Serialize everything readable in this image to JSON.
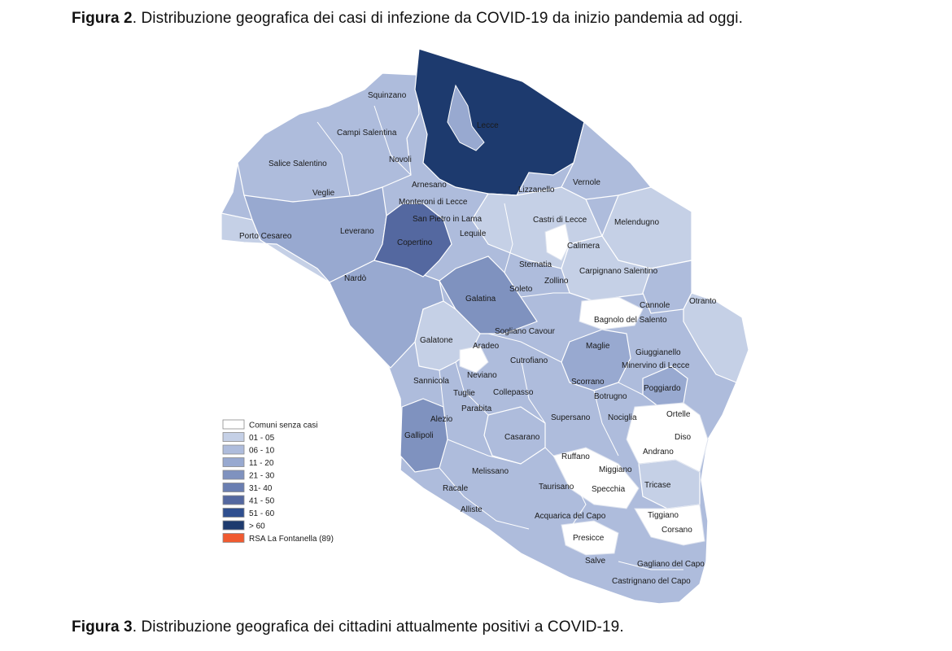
{
  "figure2": {
    "label": "Figura 2",
    "text": ". Distribuzione  geografica dei  casi di infezione  da  COVID-19 da inizio pandemia ad oggi."
  },
  "figure3": {
    "label": "Figura 3",
    "text": ". Distribuzione  geografica dei cittadini attualmente positivi a COVID-19."
  },
  "colors": {
    "none": "#ffffff",
    "c1": "#c5d0e6",
    "c2": "#aebcdc",
    "c3": "#98a9d0",
    "c4": "#7f92bf",
    "c5": "#6a7eb1",
    "c6": "#5468a0",
    "c7": "#2f4f8f",
    "c8": "#1d3a6e",
    "rsa": "#f05a30",
    "border": "#ffffff"
  },
  "legend": [
    {
      "label": "Comuni senza casi",
      "color": "none"
    },
    {
      "label": "01 - 05",
      "color": "c1"
    },
    {
      "label": "06 - 10",
      "color": "c2"
    },
    {
      "label": "11 - 20",
      "color": "c3"
    },
    {
      "label": "21 - 30",
      "color": "c4"
    },
    {
      "label": "31- 40",
      "color": "c5"
    },
    {
      "label": "41 - 50",
      "color": "c6"
    },
    {
      "label": "51 - 60",
      "color": "c7"
    },
    {
      "label": "> 60",
      "color": "c8"
    },
    {
      "label": "RSA La Fontanella (89)",
      "color": "rsa"
    }
  ],
  "towns": [
    {
      "name": "Squinzano",
      "color": "c3"
    },
    {
      "name": "Campi Salentina",
      "color": "c2"
    },
    {
      "name": "Lecce",
      "color": "c8"
    },
    {
      "name": "Novoli",
      "color": "c2"
    },
    {
      "name": "Salice Salentino",
      "color": "c2"
    },
    {
      "name": "Arnesano",
      "color": "c4"
    },
    {
      "name": "Veglie",
      "color": "c3"
    },
    {
      "name": "Monteroni di Lecce",
      "color": "c3"
    },
    {
      "name": "Lizzanello",
      "color": "c2"
    },
    {
      "name": "Vernole",
      "color": "c2"
    },
    {
      "name": "San Pietro in Lama",
      "color": "c6"
    },
    {
      "name": "Castri di Lecce",
      "color": "c1"
    },
    {
      "name": "Melendugno",
      "color": "c1"
    },
    {
      "name": "Leverano",
      "color": "c3"
    },
    {
      "name": "Porto Cesareo",
      "color": "c1"
    },
    {
      "name": "Lequile",
      "color": "c2"
    },
    {
      "name": "Copertino",
      "color": "c6"
    },
    {
      "name": "Calimera",
      "color": "c1"
    },
    {
      "name": "Sternatia",
      "color": "c1"
    },
    {
      "name": "Carpignano Salentino",
      "color": "c1"
    },
    {
      "name": "Nardò",
      "color": "c3"
    },
    {
      "name": "Zollino",
      "color": "c1"
    },
    {
      "name": "Soleto",
      "color": "c1"
    },
    {
      "name": "Galatina",
      "color": "c4"
    },
    {
      "name": "Cannole",
      "color": "c2"
    },
    {
      "name": "Otranto",
      "color": "c1"
    },
    {
      "name": "Bagnolo del Salento",
      "color": "c1"
    },
    {
      "name": "Sogliano Cavour",
      "color": "c2"
    },
    {
      "name": "Galatone",
      "color": "c1"
    },
    {
      "name": "Maglie",
      "color": "c3"
    },
    {
      "name": "Aradeo",
      "color": "c1"
    },
    {
      "name": "Giuggianello",
      "color": "c1"
    },
    {
      "name": "Cutrofiano",
      "color": "c1"
    },
    {
      "name": "Minervino di Lecce",
      "color": "c1"
    },
    {
      "name": "Neviano",
      "color": "c1"
    },
    {
      "name": "Sannicola",
      "color": "c1"
    },
    {
      "name": "Scorrano",
      "color": "c3"
    },
    {
      "name": "Tuglie",
      "color": "c1"
    },
    {
      "name": "Collepasso",
      "color": "c1"
    },
    {
      "name": "Botrugno",
      "color": "c1"
    },
    {
      "name": "Poggiardo",
      "color": "c3"
    },
    {
      "name": "Parabita",
      "color": "c1"
    },
    {
      "name": "Alezio",
      "color": "c1"
    },
    {
      "name": "Supersano",
      "color": "c1"
    },
    {
      "name": "Nociglia",
      "color": "c1"
    },
    {
      "name": "Ortelle",
      "color": "none"
    },
    {
      "name": "Gallipoli",
      "color": "c3"
    },
    {
      "name": "Casarano",
      "color": "c2"
    },
    {
      "name": "Diso",
      "color": "none"
    },
    {
      "name": "Andrano",
      "color": "none"
    },
    {
      "name": "Ruffano",
      "color": "c1"
    },
    {
      "name": "Miggiano",
      "color": "c1"
    },
    {
      "name": "Melissano",
      "color": "c1"
    },
    {
      "name": "Tricase",
      "color": "c1"
    },
    {
      "name": "Taurisano",
      "color": "c1"
    },
    {
      "name": "Racale",
      "color": "c1"
    },
    {
      "name": "Specchia",
      "color": "none"
    },
    {
      "name": "Alliste",
      "color": "c1"
    },
    {
      "name": "Acquarica del Capo",
      "color": "c1"
    },
    {
      "name": "Tiggiano",
      "color": "none"
    },
    {
      "name": "Corsano",
      "color": "none"
    },
    {
      "name": "Presicce",
      "color": "none"
    },
    {
      "name": "Salve",
      "color": "c1"
    },
    {
      "name": "Gagliano del Capo",
      "color": "c1"
    },
    {
      "name": "Castrignano del Capo",
      "color": "c1"
    }
  ]
}
